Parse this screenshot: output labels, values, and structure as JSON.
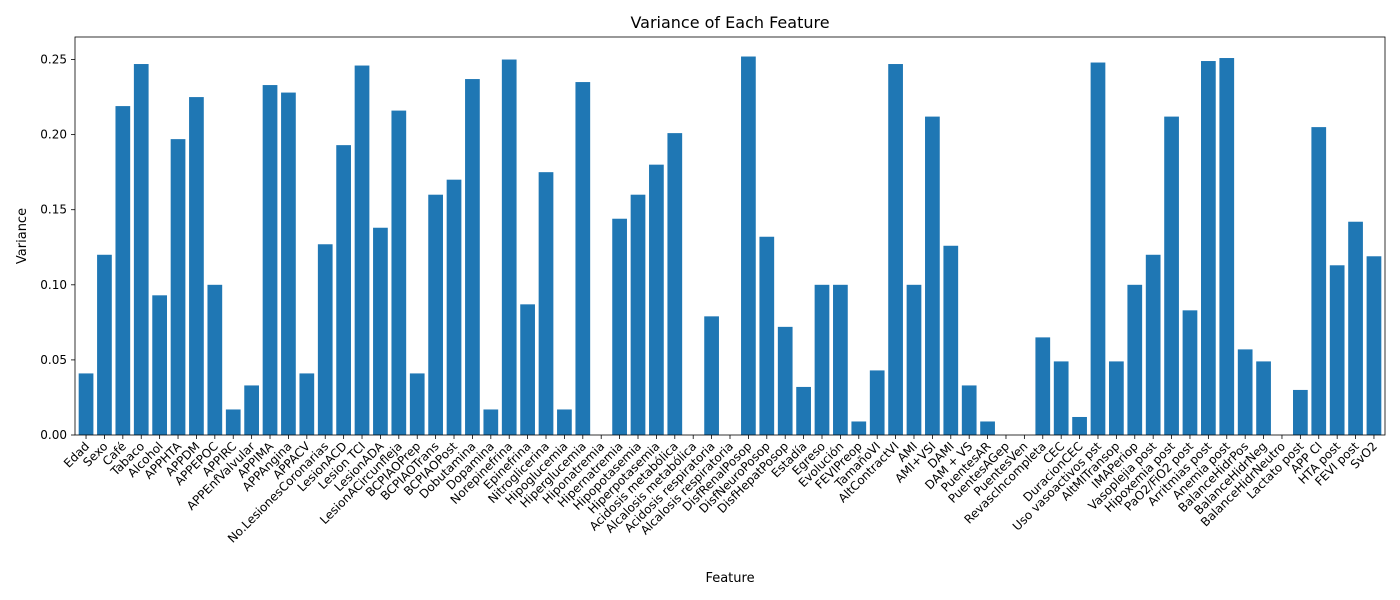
{
  "chart_data": {
    "type": "bar",
    "title": "Variance of Each Feature",
    "xlabel": "Feature",
    "ylabel": "Variance",
    "ylim": [
      0,
      0.265
    ],
    "yticks": [
      0.0,
      0.05,
      0.1,
      0.15,
      0.2,
      0.25
    ],
    "ytick_labels": [
      "0.00",
      "0.05",
      "0.10",
      "0.15",
      "0.20",
      "0.25"
    ],
    "grid": false,
    "bar_color": "#1f77b4",
    "categories": [
      "Edad",
      "Sexo",
      "Café",
      "Tabaco",
      "Alcohol",
      "APPHTA",
      "APPDM",
      "APPEPOC",
      "APPIRC",
      "APPEnfValvular",
      "APPIMA",
      "APPAngina",
      "APPACV",
      "No.LesionesCoronarias",
      "LesionACD",
      "Lesion TCI",
      "LesionADA",
      "LesionACircunfleja",
      "BCPIAOPrep",
      "BCPIAOTrans",
      "BCPIAOPost",
      "Dobutamina",
      "Dopamina",
      "Norepinefrina",
      "Epinefrina",
      "Nitroglicerina",
      "Hipoglucemia",
      "Hiperglucemia",
      "Hiponatremia",
      "Hipernatremia",
      "Hipopotasemia",
      "Hiperpotasemia",
      "Acidosis metabólica",
      "Alcalosis metabólica",
      "Acidosis respiratoria",
      "Alcalosis respiratoria",
      "DisfRenalPosop",
      "DisfNeuroPosop",
      "DisfHepatPosop",
      "Estadía",
      "Egreso",
      "Evolución",
      "FEVIPreop",
      "TamañoVI",
      "AltContractVI",
      "AMI",
      "AMI+VSI",
      "DAMI",
      "DAM + VS",
      "PuentesAR",
      "PuentesAGep",
      "PuentesVen",
      "RevascIncompleta",
      "CEC",
      "DuracionCEC",
      "Uso vasoactivos pst",
      "AltMITransop",
      "IMAPeriop",
      "Vasoplejia post",
      "Hipoxemia post",
      "PaO2/FiO2 post",
      "Arritmias post",
      "Anemia post",
      "BalanceHidrPos",
      "BalanceHidrNeg",
      "BalanceHidrNeutro",
      "Lactato post",
      "APP CI",
      "HTA post",
      "FEVI post",
      "SvO2"
    ],
    "values": [
      0.041,
      0.12,
      0.219,
      0.247,
      0.093,
      0.197,
      0.225,
      0.1,
      0.017,
      0.033,
      0.233,
      0.228,
      0.041,
      0.127,
      0.193,
      0.246,
      0.138,
      0.216,
      0.041,
      0.16,
      0.17,
      0.237,
      0.017,
      0.25,
      0.087,
      0.175,
      0.017,
      0.235,
      0.0,
      0.144,
      0.16,
      0.18,
      0.201,
      0.0,
      0.079,
      0.0,
      0.252,
      0.132,
      0.072,
      0.032,
      0.1,
      0.1,
      0.009,
      0.043,
      0.247,
      0.1,
      0.212,
      0.126,
      0.033,
      0.009,
      0.0,
      0.0,
      0.065,
      0.049,
      0.012,
      0.248,
      0.049,
      0.1,
      0.12,
      0.212,
      0.083,
      0.249,
      0.251,
      0.057,
      0.049,
      0.0,
      0.03,
      0.205,
      0.113,
      0.142,
      0.119
    ]
  }
}
